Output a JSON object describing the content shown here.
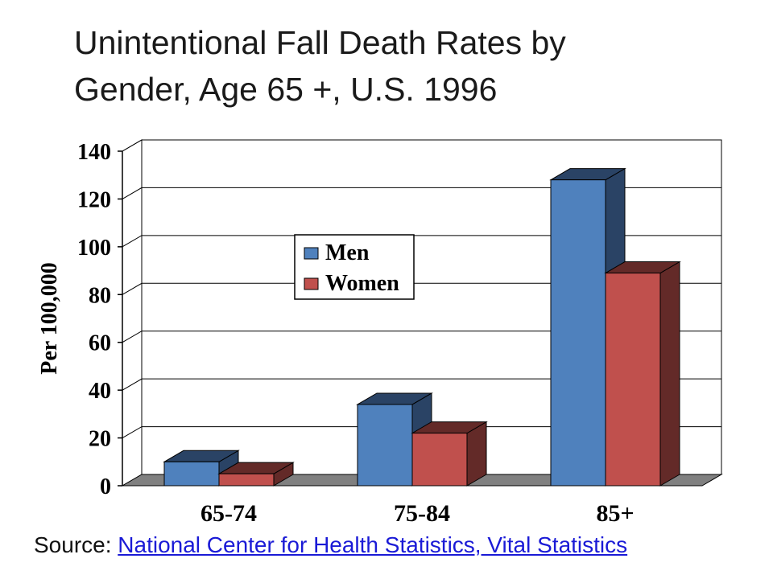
{
  "title_lines": [
    "Unintentional Fall Death Rates by",
    "Gender, Age 65 +, U.S. 1996"
  ],
  "source": {
    "prefix": "Source: ",
    "link_text": "National Center for Health Statistics, Vital Statistics "
  },
  "colors": {
    "men": "#4f81bd",
    "men_dark": "#2a4365",
    "women": "#c0504d",
    "women_dark": "#632a28",
    "floor": "#808080",
    "link": "#1a1ad6"
  },
  "chart_data": {
    "type": "bar",
    "title": "Unintentional Fall Death Rates by Gender, Age 65 +, U.S. 1996",
    "categories": [
      "65-74",
      "75-84",
      "85+"
    ],
    "series": [
      {
        "name": "Men",
        "values": [
          10,
          34,
          128
        ]
      },
      {
        "name": "Women",
        "values": [
          5,
          22,
          89
        ]
      }
    ],
    "ylabel": "Per 100,000",
    "xlabel": "",
    "ylim": [
      0,
      140
    ],
    "yticks": [
      0,
      20,
      40,
      60,
      80,
      100,
      120,
      140
    ],
    "grid": true,
    "legend_position": "center-left",
    "style": "3d-clustered"
  }
}
